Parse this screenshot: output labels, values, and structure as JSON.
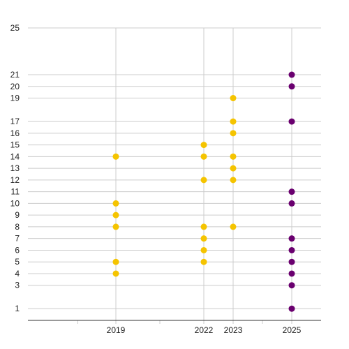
{
  "chart_data": {
    "type": "scatter",
    "x_ticks": [
      2019,
      2022,
      2023,
      2025
    ],
    "y_ticks": [
      1,
      3,
      4,
      5,
      6,
      7,
      8,
      9,
      10,
      11,
      12,
      13,
      14,
      15,
      16,
      17,
      19,
      20,
      21,
      25
    ],
    "xlim": [
      2016,
      2026
    ],
    "ylim": [
      0,
      25
    ],
    "grid": true,
    "series": [
      {
        "color": "#f5c400",
        "points": [
          {
            "x": 2019,
            "y": 4
          },
          {
            "x": 2019,
            "y": 5
          },
          {
            "x": 2019,
            "y": 8
          },
          {
            "x": 2019,
            "y": 9
          },
          {
            "x": 2019,
            "y": 10
          },
          {
            "x": 2019,
            "y": 14
          },
          {
            "x": 2022,
            "y": 5
          },
          {
            "x": 2022,
            "y": 6
          },
          {
            "x": 2022,
            "y": 7
          },
          {
            "x": 2022,
            "y": 8
          },
          {
            "x": 2022,
            "y": 12
          },
          {
            "x": 2022,
            "y": 14
          },
          {
            "x": 2022,
            "y": 15
          },
          {
            "x": 2023,
            "y": 8
          },
          {
            "x": 2023,
            "y": 12
          },
          {
            "x": 2023,
            "y": 13
          },
          {
            "x": 2023,
            "y": 14
          },
          {
            "x": 2023,
            "y": 16
          },
          {
            "x": 2023,
            "y": 17
          },
          {
            "x": 2023,
            "y": 19
          }
        ]
      },
      {
        "color": "#6a006f",
        "points": [
          {
            "x": 2025,
            "y": 1
          },
          {
            "x": 2025,
            "y": 3
          },
          {
            "x": 2025,
            "y": 4
          },
          {
            "x": 2025,
            "y": 5
          },
          {
            "x": 2025,
            "y": 6
          },
          {
            "x": 2025,
            "y": 7
          },
          {
            "x": 2025,
            "y": 10
          },
          {
            "x": 2025,
            "y": 11
          },
          {
            "x": 2025,
            "y": 17
          },
          {
            "x": 2025,
            "y": 20
          },
          {
            "x": 2025,
            "y": 21
          }
        ]
      }
    ]
  }
}
